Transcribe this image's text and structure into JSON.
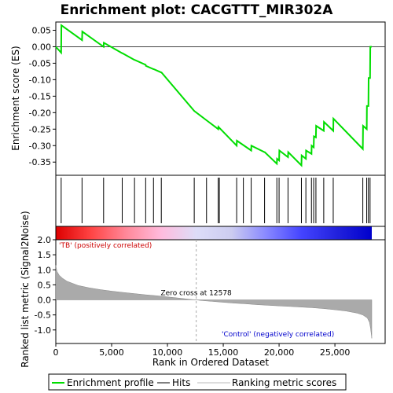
{
  "title": "Enrichment plot: CACGTTT_MIR302A",
  "chart_data": {
    "type": "line",
    "x_range": [
      0,
      29500
    ],
    "n_genes": 28300,
    "es_panel": {
      "ylabel": "Enrichment score (ES)",
      "ylim": [
        -0.39,
        0.075
      ],
      "yticks": [
        0.05,
        0.0,
        -0.05,
        -0.1,
        -0.15,
        -0.2,
        -0.25,
        -0.3,
        -0.35
      ],
      "ytick_labels": [
        "0.05",
        "0.00",
        "-0.05",
        "-0.10",
        "-0.15",
        "-0.20",
        "-0.25",
        "-0.30",
        "-0.35"
      ],
      "series": [
        {
          "name": "Enrichment profile",
          "color": "#00dd00",
          "points": [
            [
              0,
              0.0
            ],
            [
              480,
              -0.018
            ],
            [
              500,
              0.065
            ],
            [
              2350,
              0.02
            ],
            [
              2370,
              0.046
            ],
            [
              4280,
              0.0
            ],
            [
              4300,
              0.012
            ],
            [
              5950,
              -0.02
            ],
            [
              5970,
              -0.02
            ],
            [
              7050,
              -0.04
            ],
            [
              7070,
              -0.04
            ],
            [
              8050,
              -0.055
            ],
            [
              8070,
              -0.058
            ],
            [
              8750,
              -0.068
            ],
            [
              8770,
              -0.068
            ],
            [
              9450,
              -0.078
            ],
            [
              9470,
              -0.078
            ],
            [
              12400,
              -0.195
            ],
            [
              13500,
              -0.223
            ],
            [
              14550,
              -0.25
            ],
            [
              14570,
              -0.243
            ],
            [
              16200,
              -0.3
            ],
            [
              16220,
              -0.285
            ],
            [
              17500,
              -0.315
            ],
            [
              17520,
              -0.3
            ],
            [
              18700,
              -0.32
            ],
            [
              18720,
              -0.32
            ],
            [
              19800,
              -0.355
            ],
            [
              19820,
              -0.34
            ],
            [
              20000,
              -0.345
            ],
            [
              20020,
              -0.315
            ],
            [
              20800,
              -0.335
            ],
            [
              20820,
              -0.32
            ],
            [
              22000,
              -0.36
            ],
            [
              22020,
              -0.33
            ],
            [
              22400,
              -0.34
            ],
            [
              22420,
              -0.315
            ],
            [
              22900,
              -0.325
            ],
            [
              22920,
              -0.3
            ],
            [
              23100,
              -0.305
            ],
            [
              23120,
              -0.272
            ],
            [
              23300,
              -0.275
            ],
            [
              23320,
              -0.24
            ],
            [
              24000,
              -0.255
            ],
            [
              24020,
              -0.228
            ],
            [
              24850,
              -0.255
            ],
            [
              24870,
              -0.218
            ],
            [
              27500,
              -0.31
            ],
            [
              27520,
              -0.24
            ],
            [
              27850,
              -0.25
            ],
            [
              27870,
              -0.18
            ],
            [
              28000,
              -0.18
            ],
            [
              28020,
              -0.095
            ],
            [
              28150,
              -0.095
            ],
            [
              28170,
              0.0
            ],
            [
              28300,
              0.0
            ]
          ]
        }
      ]
    },
    "hits_panel": {
      "legend_name": "Hits",
      "positions": [
        480,
        2350,
        4280,
        5950,
        7050,
        8050,
        8750,
        9450,
        12400,
        13500,
        14550,
        14650,
        16200,
        16800,
        17500,
        18700,
        19800,
        20000,
        20800,
        22000,
        22400,
        22900,
        23100,
        23300,
        24000,
        24850,
        27500,
        27850,
        28000,
        28150
      ]
    },
    "ranking_bar": {
      "gradient": [
        "#dd0000",
        "#ff4444",
        "#ff8899",
        "#ffbbdd",
        "#ddddf8",
        "#ccccf0",
        "#8888ff",
        "#4444ff",
        "#2222dd",
        "#0000cc"
      ]
    },
    "metric_panel": {
      "ylabel": "Ranked list metric (Signal2Noise)",
      "xlabel": "Rank in Ordered Dataset",
      "ylim": [
        -1.45,
        2.0
      ],
      "yticks": [
        2.0,
        1.5,
        1.0,
        0.5,
        0.0,
        -0.5,
        -1.0
      ],
      "ytick_labels": [
        "2.0",
        "1.5",
        "1.0",
        "0.5",
        "0.0",
        "-0.5",
        "-1.0"
      ],
      "xticks": [
        0,
        5000,
        10000,
        15000,
        20000,
        25000
      ],
      "xtick_labels": [
        "0",
        "5,000",
        "10,000",
        "15,000",
        "20,000",
        "25,000"
      ],
      "zero_cross_rank": 12578,
      "zero_cross_label": "Zero cross at 12578",
      "positive_label": "'TB' (positively correlated)",
      "negative_label": "'Control' (negatively correlated)",
      "positive_color": "#cc0000",
      "negative_color": "#0000cc",
      "area_color": "#aaaaaa",
      "series": [
        {
          "name": "Ranking metric scores",
          "points": [
            [
              0,
              1.15
            ],
            [
              100,
              0.95
            ],
            [
              300,
              0.82
            ],
            [
              600,
              0.72
            ],
            [
              1000,
              0.62
            ],
            [
              1500,
              0.55
            ],
            [
              2000,
              0.48
            ],
            [
              3000,
              0.4
            ],
            [
              4000,
              0.34
            ],
            [
              5000,
              0.29
            ],
            [
              6000,
              0.25
            ],
            [
              7000,
              0.21
            ],
            [
              8000,
              0.17
            ],
            [
              9000,
              0.14
            ],
            [
              10000,
              0.1
            ],
            [
              11000,
              0.06
            ],
            [
              12000,
              0.02
            ],
            [
              12578,
              0.0
            ],
            [
              13000,
              -0.02
            ],
            [
              14000,
              -0.05
            ],
            [
              15000,
              -0.08
            ],
            [
              16000,
              -0.11
            ],
            [
              17000,
              -0.13
            ],
            [
              18000,
              -0.16
            ],
            [
              19000,
              -0.18
            ],
            [
              20000,
              -0.2
            ],
            [
              21000,
              -0.22
            ],
            [
              22000,
              -0.24
            ],
            [
              23000,
              -0.26
            ],
            [
              24000,
              -0.29
            ],
            [
              25000,
              -0.33
            ],
            [
              26000,
              -0.37
            ],
            [
              27000,
              -0.44
            ],
            [
              27500,
              -0.5
            ],
            [
              27900,
              -0.6
            ],
            [
              28100,
              -0.75
            ],
            [
              28200,
              -0.95
            ],
            [
              28300,
              -1.28
            ]
          ]
        }
      ]
    }
  },
  "legend": {
    "items": [
      {
        "label": "Enrichment profile",
        "color": "#00dd00"
      },
      {
        "label": "Hits",
        "color": "#000000"
      },
      {
        "label": "Ranking metric scores",
        "color": "#bbbbbb"
      }
    ]
  }
}
